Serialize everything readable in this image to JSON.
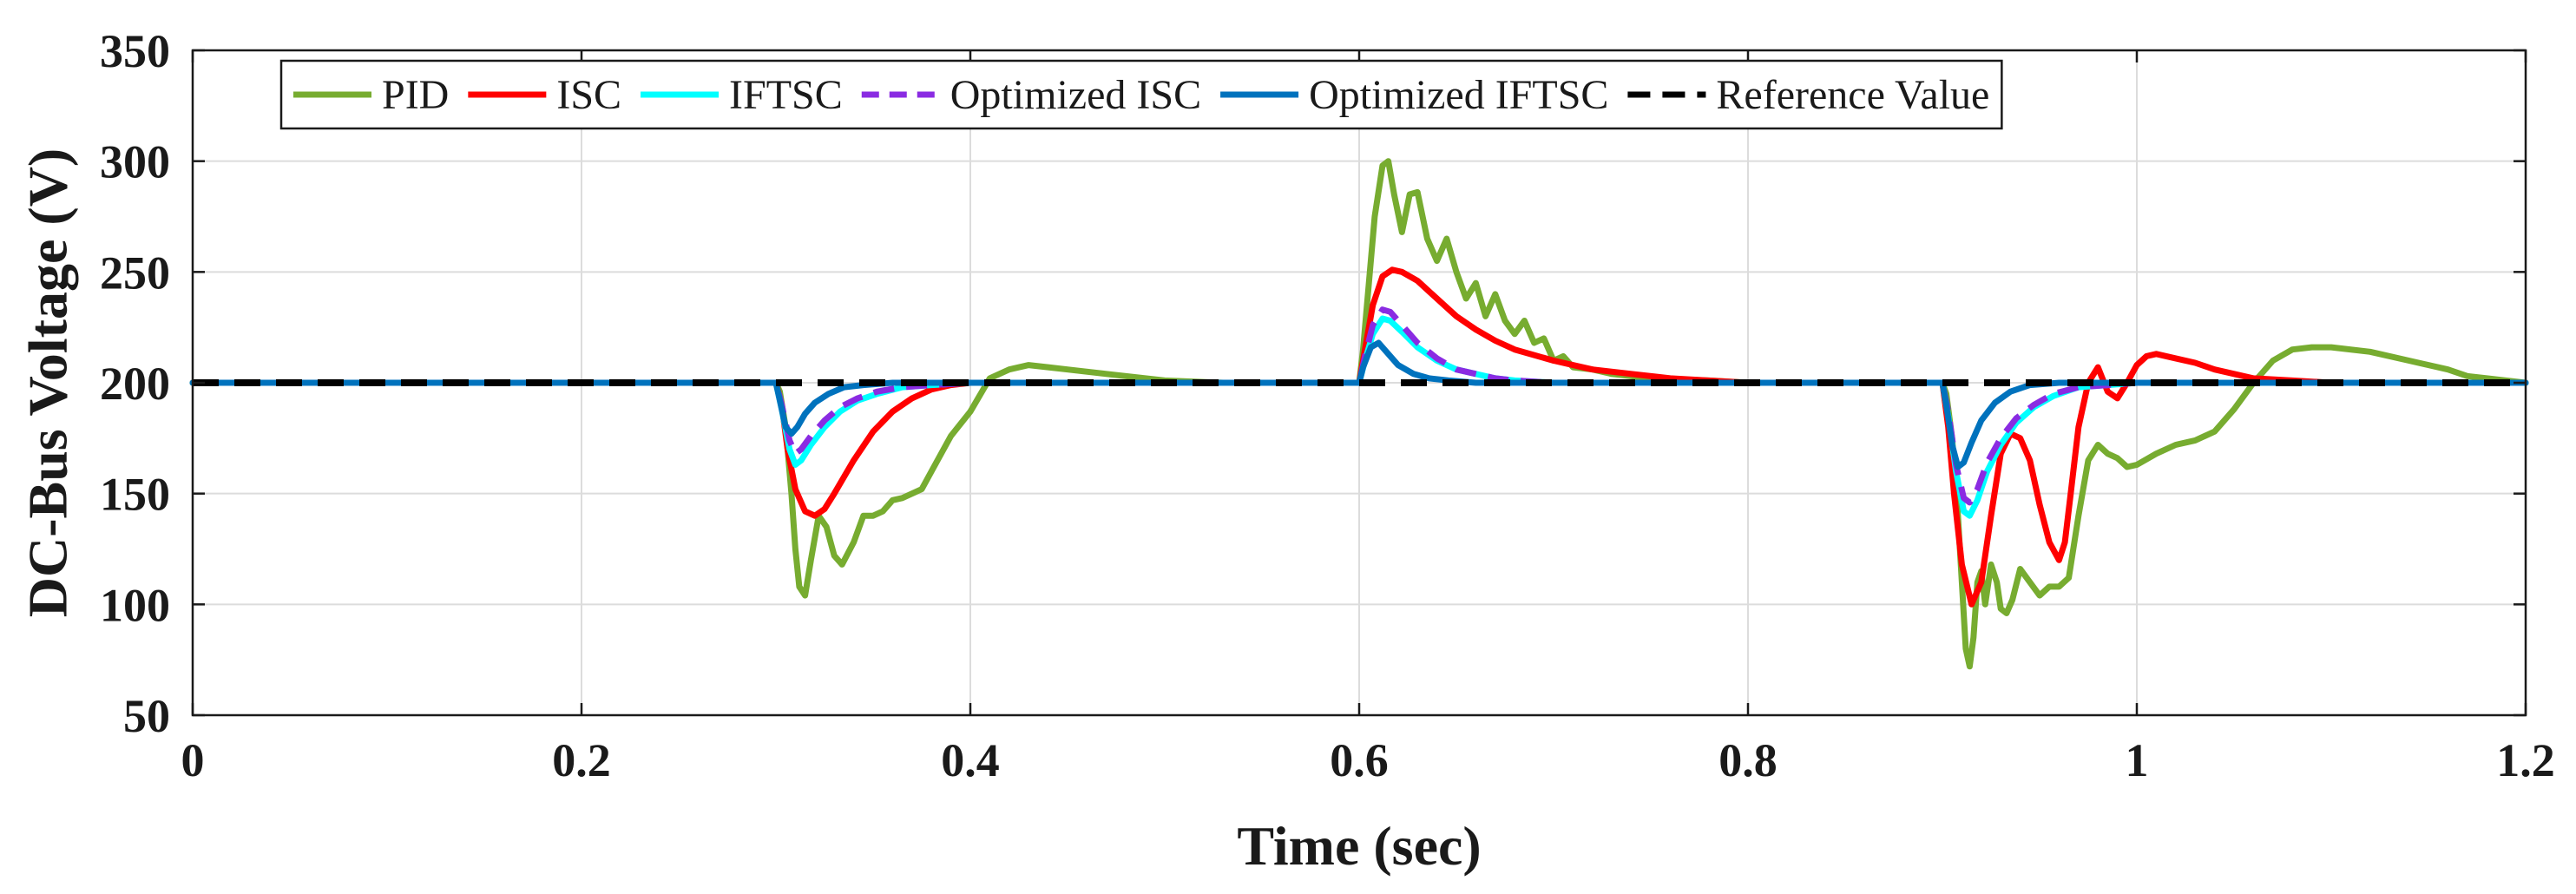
{
  "chart_data": {
    "type": "line",
    "title": "",
    "xlabel": "Time (sec)",
    "ylabel": "DC-Bus Voltage (V)",
    "xlim": [
      0,
      1.2
    ],
    "ylim": [
      50,
      350
    ],
    "xticks": [
      0,
      0.2,
      0.4,
      0.6,
      0.8,
      1,
      1.2
    ],
    "xtick_labels": [
      "0",
      "0.2",
      "0.4",
      "0.6",
      "0.8",
      "1",
      "1.2"
    ],
    "yticks": [
      50,
      100,
      150,
      200,
      250,
      300,
      350
    ],
    "ytick_labels": [
      "50",
      "100",
      "150",
      "200",
      "250",
      "300",
      "350"
    ],
    "grid": true,
    "legend_position": "top-center",
    "series": [
      {
        "name": "PID",
        "color": "#77AC30",
        "dash": "solid",
        "x": [
          0,
          0.3,
          0.302,
          0.305,
          0.308,
          0.31,
          0.312,
          0.315,
          0.318,
          0.322,
          0.326,
          0.33,
          0.334,
          0.34,
          0.345,
          0.35,
          0.355,
          0.36,
          0.365,
          0.37,
          0.375,
          0.38,
          0.39,
          0.4,
          0.41,
          0.42,
          0.43,
          0.44,
          0.45,
          0.47,
          0.5,
          0.53,
          0.56,
          0.6,
          0.602,
          0.605,
          0.608,
          0.612,
          0.615,
          0.618,
          0.622,
          0.626,
          0.63,
          0.635,
          0.64,
          0.645,
          0.65,
          0.655,
          0.66,
          0.665,
          0.67,
          0.675,
          0.68,
          0.685,
          0.69,
          0.695,
          0.7,
          0.705,
          0.71,
          0.72,
          0.73,
          0.75,
          0.78,
          0.8,
          0.83,
          0.86,
          0.9,
          0.902,
          0.905,
          0.908,
          0.91,
          0.912,
          0.914,
          0.916,
          0.918,
          0.92,
          0.922,
          0.925,
          0.928,
          0.93,
          0.933,
          0.936,
          0.94,
          0.945,
          0.95,
          0.955,
          0.96,
          0.965,
          0.97,
          0.975,
          0.98,
          0.985,
          0.99,
          0.995,
          1,
          1.01,
          1.02,
          1.03,
          1.04,
          1.05,
          1.06,
          1.07,
          1.08,
          1.09,
          1.1,
          1.12,
          1.14,
          1.16,
          1.17,
          1.18,
          1.2
        ],
        "y": [
          200,
          200,
          196,
          180,
          150,
          125,
          108,
          104,
          120,
          140,
          135,
          122,
          118,
          128,
          140,
          140,
          142,
          147,
          148,
          150,
          152,
          160,
          176,
          187,
          202,
          206,
          208,
          207,
          206,
          204,
          201,
          200,
          200,
          200,
          215,
          245,
          275,
          298,
          300,
          285,
          268,
          285,
          286,
          265,
          255,
          265,
          250,
          238,
          245,
          230,
          240,
          228,
          222,
          228,
          218,
          220,
          210,
          212,
          207,
          206,
          204,
          202,
          201,
          200,
          200,
          200,
          200,
          195,
          175,
          140,
          110,
          80,
          72,
          85,
          110,
          115,
          100,
          118,
          110,
          98,
          96,
          102,
          116,
          110,
          104,
          108,
          108,
          112,
          140,
          165,
          172,
          168,
          166,
          162,
          163,
          168,
          172,
          174,
          178,
          188,
          200,
          210,
          215,
          216,
          216,
          214,
          210,
          206,
          203,
          202,
          200
        ]
      },
      {
        "name": "ISC",
        "color": "#FF0000",
        "dash": "solid",
        "x": [
          0,
          0.3,
          0.303,
          0.306,
          0.31,
          0.315,
          0.32,
          0.325,
          0.33,
          0.34,
          0.35,
          0.36,
          0.37,
          0.38,
          0.39,
          0.4,
          0.42,
          0.45,
          0.6,
          0.603,
          0.607,
          0.612,
          0.617,
          0.622,
          0.63,
          0.64,
          0.65,
          0.66,
          0.67,
          0.68,
          0.7,
          0.72,
          0.74,
          0.76,
          0.8,
          0.85,
          0.9,
          0.903,
          0.906,
          0.91,
          0.915,
          0.92,
          0.925,
          0.93,
          0.935,
          0.94,
          0.945,
          0.95,
          0.955,
          0.96,
          0.963,
          0.966,
          0.97,
          0.975,
          0.98,
          0.985,
          0.99,
          0.995,
          1,
          1.005,
          1.01,
          1.02,
          1.03,
          1.04,
          1.05,
          1.06,
          1.08,
          1.1,
          1.2
        ],
        "y": [
          200,
          200,
          190,
          170,
          152,
          142,
          140,
          143,
          150,
          165,
          178,
          187,
          193,
          197,
          199,
          200,
          200,
          200,
          200,
          215,
          235,
          248,
          251,
          250,
          246,
          238,
          230,
          224,
          219,
          215,
          210,
          206,
          204,
          202,
          200,
          200,
          200,
          180,
          150,
          118,
          100,
          110,
          140,
          168,
          177,
          175,
          165,
          145,
          128,
          120,
          128,
          150,
          180,
          200,
          207,
          196,
          193,
          200,
          208,
          212,
          213,
          211,
          209,
          206,
          204,
          202,
          201,
          200,
          200
        ]
      },
      {
        "name": "IFTSC",
        "color": "#00FFFF",
        "dash": "solid",
        "x": [
          0,
          0.3,
          0.303,
          0.307,
          0.31,
          0.313,
          0.318,
          0.325,
          0.333,
          0.342,
          0.352,
          0.365,
          0.38,
          0.4,
          0.6,
          0.603,
          0.607,
          0.612,
          0.616,
          0.622,
          0.63,
          0.64,
          0.65,
          0.66,
          0.67,
          0.68,
          0.7,
          0.72,
          0.75,
          0.9,
          0.903,
          0.907,
          0.911,
          0.914,
          0.918,
          0.923,
          0.93,
          0.938,
          0.947,
          0.957,
          0.97,
          0.985,
          1,
          1.2
        ],
        "y": [
          200,
          200,
          188,
          170,
          163,
          165,
          172,
          180,
          187,
          192,
          195,
          198,
          199,
          200,
          200,
          210,
          222,
          229,
          228,
          223,
          216,
          210,
          206,
          204,
          202,
          201,
          200,
          200,
          200,
          200,
          185,
          160,
          142,
          140,
          147,
          160,
          172,
          182,
          189,
          194,
          198,
          199,
          200,
          200
        ]
      },
      {
        "name": "Optimized ISC",
        "color": "#8A2BE2",
        "dash": "dashed",
        "x": [
          0,
          0.3,
          0.303,
          0.307,
          0.31,
          0.313,
          0.318,
          0.325,
          0.333,
          0.342,
          0.352,
          0.365,
          0.38,
          0.4,
          0.6,
          0.603,
          0.607,
          0.612,
          0.616,
          0.622,
          0.63,
          0.64,
          0.65,
          0.66,
          0.67,
          0.68,
          0.7,
          0.72,
          0.75,
          0.9,
          0.903,
          0.907,
          0.911,
          0.914,
          0.918,
          0.923,
          0.93,
          0.938,
          0.947,
          0.957,
          0.97,
          0.985,
          1,
          1.2
        ],
        "y": [
          200,
          200,
          190,
          174,
          168,
          170,
          176,
          183,
          189,
          193,
          196,
          198,
          199,
          200,
          200,
          212,
          226,
          233,
          232,
          226,
          218,
          211,
          206,
          204,
          202,
          201,
          200,
          200,
          200,
          200,
          187,
          163,
          148,
          146,
          152,
          164,
          175,
          184,
          190,
          195,
          198,
          199,
          200,
          200
        ]
      },
      {
        "name": "Optimized IFTSC",
        "color": "#0072BD",
        "dash": "solid",
        "x": [
          0,
          0.3,
          0.302,
          0.305,
          0.308,
          0.311,
          0.315,
          0.32,
          0.327,
          0.335,
          0.345,
          0.36,
          0.6,
          0.602,
          0.606,
          0.61,
          0.614,
          0.62,
          0.628,
          0.636,
          0.646,
          0.66,
          0.9,
          0.902,
          0.905,
          0.908,
          0.911,
          0.915,
          0.92,
          0.927,
          0.935,
          0.945,
          0.96,
          1.2
        ],
        "y": [
          200,
          200,
          192,
          180,
          177,
          180,
          186,
          191,
          195,
          198,
          199,
          200,
          200,
          207,
          216,
          218,
          214,
          208,
          204,
          202,
          201,
          200,
          200,
          190,
          172,
          162,
          164,
          173,
          183,
          191,
          196,
          199,
          200,
          200
        ]
      },
      {
        "name": "Reference Value",
        "color": "#000000",
        "dash": "dashed",
        "x": [
          0,
          1.2
        ],
        "y": [
          200,
          200
        ]
      }
    ]
  }
}
